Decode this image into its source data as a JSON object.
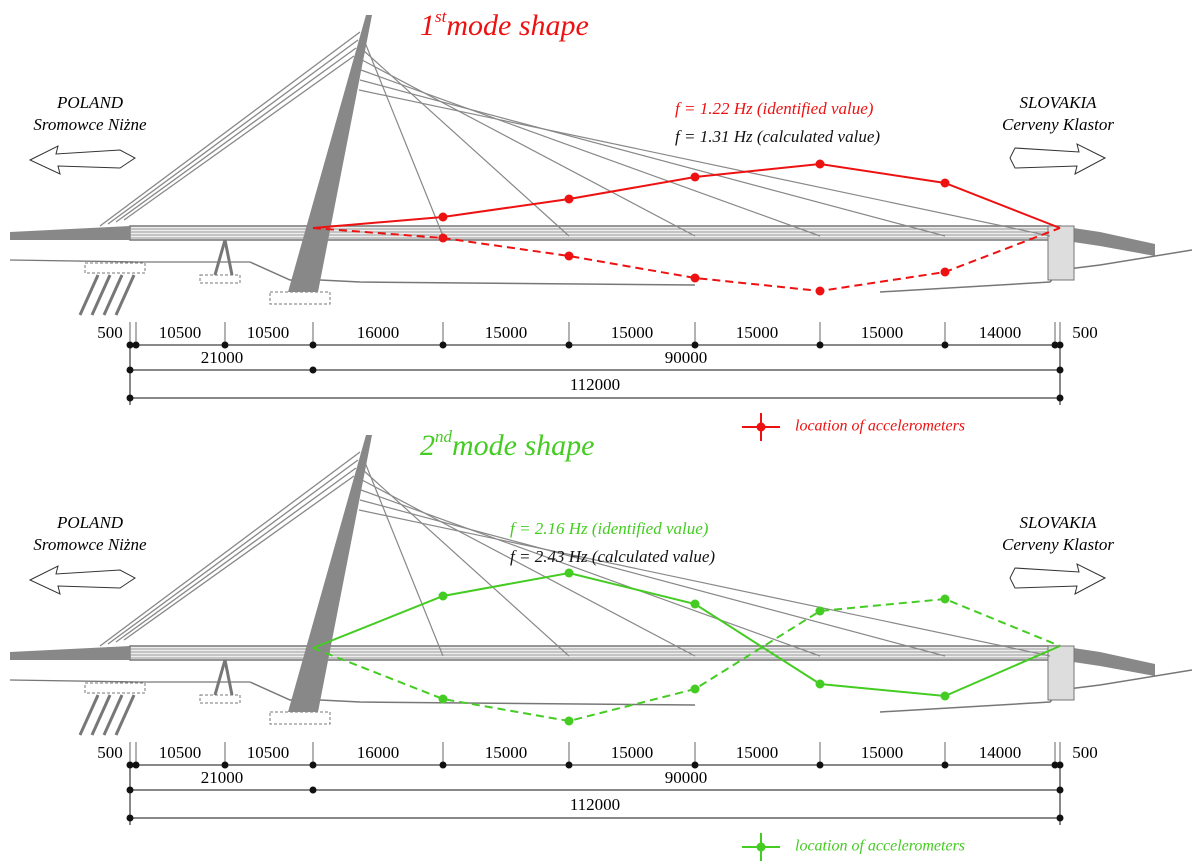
{
  "panels": [
    {
      "title": {
        "number": "1",
        "superscript": "st",
        "text": "mode shape"
      },
      "left_country": {
        "name": "POLAND",
        "town": "Sromowce Niżne"
      },
      "right_country": {
        "name": "SLOVAKIA",
        "town": "Cerveny Klastor"
      },
      "frequency_identified": "f = 1.22 Hz (identified value)",
      "frequency_calculated": "f = 1.31 Hz (calculated value)",
      "spans": [
        500,
        10500,
        10500,
        16000,
        15000,
        15000,
        15000,
        15000,
        14000,
        500
      ],
      "groups": [
        21000,
        90000
      ],
      "total": 112000,
      "legend": "location of accelerometers"
    },
    {
      "title": {
        "number": "2",
        "superscript": "nd",
        "text": "mode shape"
      },
      "left_country": {
        "name": "POLAND",
        "town": "Sromowce Niżne"
      },
      "right_country": {
        "name": "SLOVAKIA",
        "town": "Cerveny Klastor"
      },
      "frequency_identified": "f = 2.16 Hz (identified value)",
      "frequency_calculated": "f = 2.43 Hz (calculated value)",
      "spans": [
        500,
        10500,
        10500,
        16000,
        15000,
        15000,
        15000,
        15000,
        14000,
        500
      ],
      "groups": [
        21000,
        90000
      ],
      "total": 112000,
      "legend": "location of accelerometers"
    }
  ]
}
